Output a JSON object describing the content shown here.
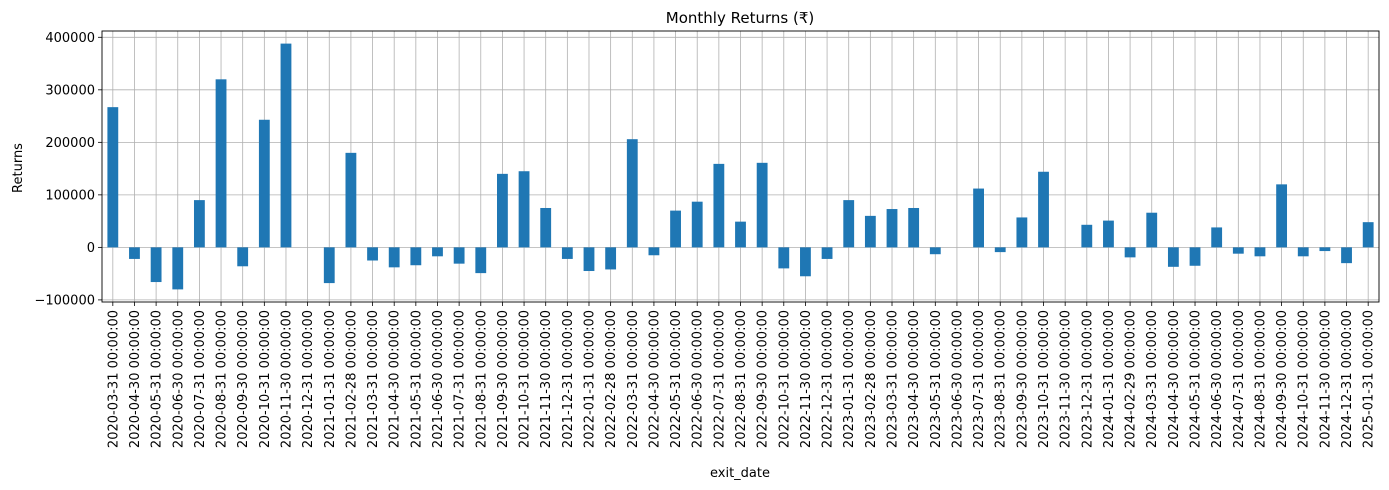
{
  "chart_data": {
    "type": "bar",
    "title": "Monthly Returns (₹)",
    "xlabel": "exit_date",
    "ylabel": "Returns",
    "ylim": [
      -100000,
      400000
    ],
    "yticks": [
      -100000,
      0,
      100000,
      200000,
      300000,
      400000
    ],
    "ytick_labels": [
      "−100000",
      "0",
      "100000",
      "200000",
      "300000",
      "400000"
    ],
    "grid": true,
    "bar_color": "#1f77b4",
    "categories": [
      "2020-03-31 00:00:00",
      "2020-04-30 00:00:00",
      "2020-05-31 00:00:00",
      "2020-06-30 00:00:00",
      "2020-07-31 00:00:00",
      "2020-08-31 00:00:00",
      "2020-09-30 00:00:00",
      "2020-10-31 00:00:00",
      "2020-11-30 00:00:00",
      "2020-12-31 00:00:00",
      "2021-01-31 00:00:00",
      "2021-02-28 00:00:00",
      "2021-03-31 00:00:00",
      "2021-04-30 00:00:00",
      "2021-05-31 00:00:00",
      "2021-06-30 00:00:00",
      "2021-07-31 00:00:00",
      "2021-08-31 00:00:00",
      "2021-09-30 00:00:00",
      "2021-10-31 00:00:00",
      "2021-11-30 00:00:00",
      "2021-12-31 00:00:00",
      "2022-01-31 00:00:00",
      "2022-02-28 00:00:00",
      "2022-03-31 00:00:00",
      "2022-04-30 00:00:00",
      "2022-05-31 00:00:00",
      "2022-06-30 00:00:00",
      "2022-07-31 00:00:00",
      "2022-08-31 00:00:00",
      "2022-09-30 00:00:00",
      "2022-10-31 00:00:00",
      "2022-11-30 00:00:00",
      "2022-12-31 00:00:00",
      "2023-01-31 00:00:00",
      "2023-02-28 00:00:00",
      "2023-03-31 00:00:00",
      "2023-04-30 00:00:00",
      "2023-05-31 00:00:00",
      "2023-06-30 00:00:00",
      "2023-07-31 00:00:00",
      "2023-08-31 00:00:00",
      "2023-09-30 00:00:00",
      "2023-10-31 00:00:00",
      "2023-11-30 00:00:00",
      "2023-12-31 00:00:00",
      "2024-01-31 00:00:00",
      "2024-02-29 00:00:00",
      "2024-03-31 00:00:00",
      "2024-04-30 00:00:00",
      "2024-05-31 00:00:00",
      "2024-06-30 00:00:00",
      "2024-07-31 00:00:00",
      "2024-08-31 00:00:00",
      "2024-09-30 00:00:00",
      "2024-10-31 00:00:00",
      "2024-11-30 00:00:00",
      "2024-12-31 00:00:00",
      "2025-01-31 00:00:00"
    ],
    "values": [
      267000,
      -22000,
      -66000,
      -80000,
      90000,
      320000,
      -36000,
      243000,
      388000,
      0,
      -68000,
      180000,
      -25000,
      -38000,
      -34000,
      -17000,
      -31000,
      -49000,
      140000,
      145000,
      75000,
      -22000,
      -45000,
      -42000,
      206000,
      -15000,
      70000,
      87000,
      159000,
      49000,
      161000,
      -40000,
      -55000,
      -22000,
      90000,
      60000,
      73000,
      75000,
      -13000,
      0,
      112000,
      -9000,
      57000,
      144000,
      0,
      43000,
      51000,
      -19000,
      66000,
      -37000,
      -35000,
      38000,
      -12000,
      -17000,
      120000,
      -17000,
      -7000,
      -30000,
      48000
    ]
  }
}
